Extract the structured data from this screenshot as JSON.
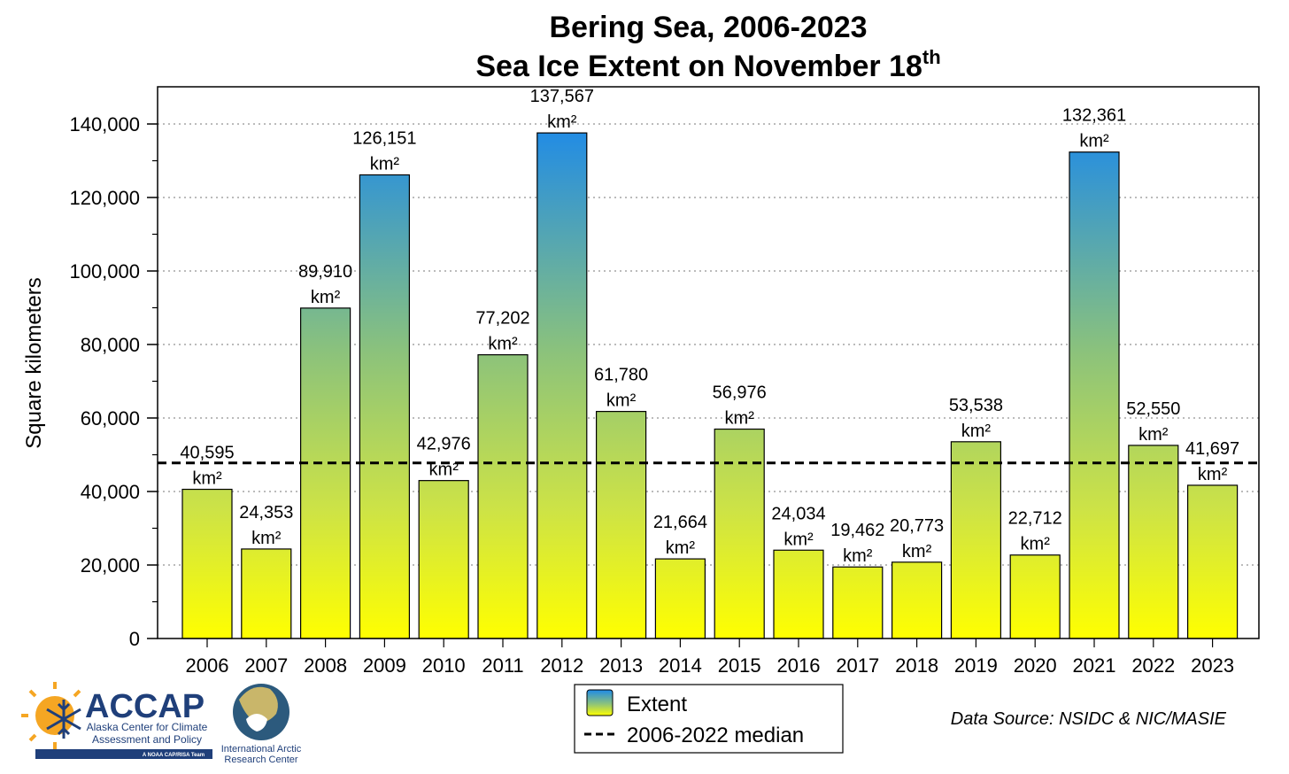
{
  "chart_data": {
    "type": "bar",
    "title": "Bering Sea, 2006-2023",
    "subtitle": "Sea Ice Extent on November 18",
    "subtitle_superscript": "th",
    "xlabel": "",
    "ylabel": "Square kilometers",
    "ylim": [
      0,
      150000
    ],
    "yticks": [
      0,
      20000,
      40000,
      60000,
      80000,
      100000,
      120000,
      140000
    ],
    "ytick_labels": [
      "0",
      "20,000",
      "40,000",
      "60,000",
      "80,000",
      "100,000",
      "120,000",
      "140,000"
    ],
    "grid": "horizontal dotted",
    "categories": [
      "2006",
      "2007",
      "2008",
      "2009",
      "2010",
      "2011",
      "2012",
      "2013",
      "2014",
      "2015",
      "2016",
      "2017",
      "2018",
      "2019",
      "2020",
      "2021",
      "2022",
      "2023"
    ],
    "values": [
      40595,
      24353,
      89910,
      126151,
      42976,
      77202,
      137567,
      61780,
      21664,
      56976,
      24034,
      19462,
      20773,
      53538,
      22712,
      132361,
      52550,
      41697
    ],
    "value_labels": [
      "40,595",
      "24,353",
      "89,910",
      "126,151",
      "42,976",
      "77,202",
      "137,567",
      "61,780",
      "21,664",
      "56,976",
      "24,034",
      "19,462",
      "20,773",
      "53,538",
      "22,712",
      "132,361",
      "52,550",
      "41,697"
    ],
    "value_unit": "km²",
    "median_value": 47786,
    "legend": {
      "placement": "bottom-center",
      "entries": [
        "Extent",
        "2006-2022 median"
      ]
    },
    "colors": {
      "gradient_top": "#1e8ae8",
      "gradient_mid": "#8dc37a",
      "gradient_bottom": "#ffff00",
      "bar_stroke": "#000000",
      "median_line": "#000000",
      "grid": "#bbbbbb"
    }
  },
  "source_text": "Data Source: NSIDC & NIC/MASIE",
  "logos": {
    "accap": {
      "name": "ACCAP",
      "line1": "Alaska Center for Climate",
      "line2": "Assessment and Policy",
      "tag": "A NOAA CAP/RISA Team",
      "icon": "sun-snowflake-icon",
      "color": "#1f3f7a"
    },
    "iarc": {
      "line1": "International Arctic",
      "line2": "Research Center",
      "icon": "globe-bear-icon"
    }
  }
}
